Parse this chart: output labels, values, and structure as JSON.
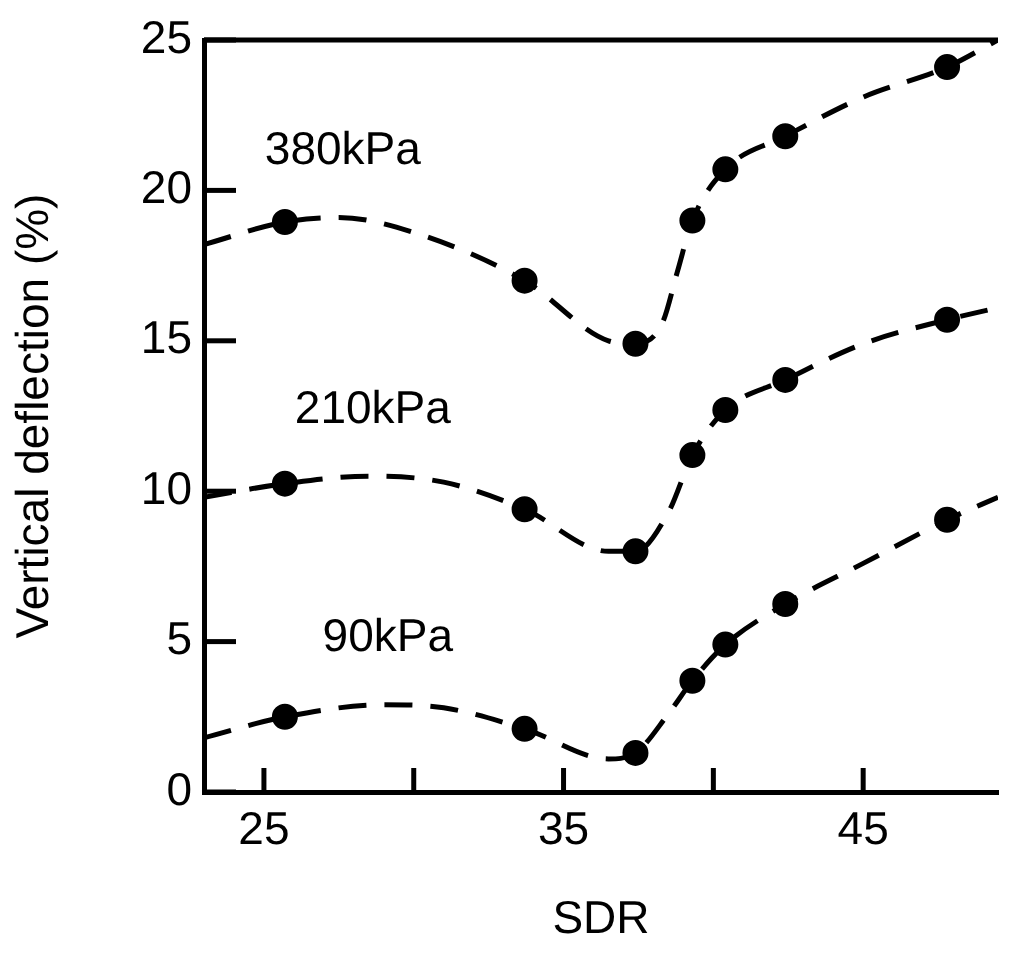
{
  "chart_data": {
    "type": "line",
    "xlabel": "SDR",
    "ylabel": "Vertical deflection (%)",
    "xlim": [
      23,
      49.5
    ],
    "ylim": [
      0,
      25
    ],
    "xticks": [
      25,
      {
        "value": 30,
        "label": null
      },
      35,
      {
        "value": 40,
        "label": null
      },
      45
    ],
    "yticks": [
      0,
      5,
      10,
      15,
      20,
      25
    ],
    "grid": false,
    "legend": false,
    "annotations": [
      "380kPa",
      "210kPa",
      "90kPa"
    ],
    "series": [
      {
        "type": "line",
        "color": "#000000",
        "line_style": "dashed",
        "marker": "none",
        "x": [
          23,
          25.7,
          27.5,
          30,
          33.7,
          36.5,
          37.4,
          38.3,
          38.8,
          39.3,
          40.4,
          42.4,
          45,
          47.8,
          49.5
        ],
        "values": [
          18.2,
          18.95,
          19.1,
          18.6,
          17.0,
          15.0,
          14.9,
          15.6,
          17.3,
          19.0,
          20.7,
          21.8,
          23.1,
          24.1,
          25
        ]
      },
      {
        "type": "line",
        "color": "#000000",
        "line_style": "dashed",
        "marker": "none",
        "x": [
          23,
          25.7,
          28.5,
          31,
          33.7,
          36.5,
          37.4,
          38.5,
          39.3,
          40.4,
          42.4,
          45,
          47.8,
          49.5
        ],
        "values": [
          9.8,
          10.25,
          10.5,
          10.3,
          9.4,
          8.0,
          8.0,
          9.3,
          11.2,
          12.7,
          13.7,
          14.9,
          15.7,
          16.1
        ]
      },
      {
        "type": "line",
        "color": "#000000",
        "line_style": "dashed",
        "marker": "none",
        "x": [
          23,
          25.7,
          29,
          31,
          33.7,
          36.5,
          37.4,
          38.5,
          39.3,
          40.4,
          42.4,
          45,
          47.8,
          49.5
        ],
        "values": [
          1.8,
          2.5,
          2.9,
          2.8,
          2.1,
          1.1,
          1.3,
          2.6,
          3.7,
          4.9,
          6.25,
          7.6,
          9.05,
          9.8
        ]
      },
      {
        "type": "scatter",
        "color": "#000000",
        "marker": "circle",
        "x": [
          25.7,
          33.7,
          37.4,
          39.3,
          40.4,
          42.4,
          47.8
        ],
        "values": [
          18.95,
          17.0,
          14.9,
          19.0,
          20.7,
          21.8,
          24.1
        ]
      },
      {
        "type": "scatter",
        "color": "#000000",
        "marker": "circle",
        "x": [
          25.7,
          33.7,
          37.4,
          39.3,
          40.4,
          42.4,
          47.8
        ],
        "values": [
          10.25,
          9.4,
          8.0,
          11.2,
          12.7,
          13.7,
          15.7
        ]
      },
      {
        "type": "scatter",
        "color": "#000000",
        "marker": "circle",
        "x": [
          25.7,
          33.7,
          37.4,
          39.3,
          40.4,
          42.4,
          47.8
        ],
        "values": [
          2.5,
          2.1,
          1.3,
          3.7,
          4.9,
          6.25,
          9.05
        ]
      }
    ]
  }
}
